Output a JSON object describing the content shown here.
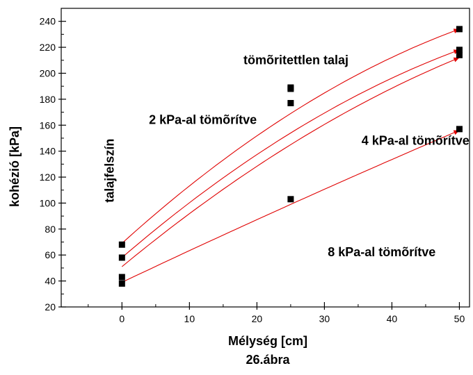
{
  "chart_data": {
    "type": "scatter",
    "title": "",
    "xlabel": "Mélység  [cm]",
    "ylabel": "kohézió [kPa]",
    "caption": "26.ábra",
    "xlim": [
      -9,
      51.5
    ],
    "ylim": [
      20,
      250
    ],
    "xticks": [
      0,
      10,
      20,
      30,
      40,
      50
    ],
    "yticks": [
      20,
      40,
      60,
      80,
      100,
      120,
      140,
      160,
      180,
      200,
      220,
      240
    ],
    "grid": false,
    "point_color": "#000000",
    "curve_color": "#e00000",
    "series": [
      {
        "label": "tömõritettlen talaj",
        "x": [
          0,
          25,
          50
        ],
        "y": [
          68,
          189,
          234
        ],
        "fit_y": [
          69,
          169,
          234
        ]
      },
      {
        "label": "2 kPa-al tömõrítve",
        "x": [
          0,
          25,
          50
        ],
        "y": [
          58,
          188,
          218
        ],
        "fit_y": [
          58,
          154,
          218
        ]
      },
      {
        "label": "4 kPa-al tömõrítve",
        "x": [
          0,
          25,
          50
        ],
        "y": [
          43,
          177,
          214
        ],
        "fit_y": [
          51,
          145,
          212
        ]
      },
      {
        "label": "8 kPa-al tömõrítve",
        "x": [
          0,
          25,
          50
        ],
        "y": [
          38,
          103,
          157
        ],
        "fit_y": [
          39,
          99,
          156
        ]
      }
    ],
    "annotations": [
      {
        "text": "tömõritettlen talaj",
        "x": 18,
        "y": 207
      },
      {
        "text": "2 kPa-al tömõrítve",
        "x": 4,
        "y": 161
      },
      {
        "text": "4 kPa-al tömõrítve",
        "x": 35.5,
        "y": 145
      },
      {
        "text": "8 kPa-al tömõrítve",
        "x": 30.5,
        "y": 59
      },
      {
        "text": "talajfelszín",
        "x": -1.2,
        "y": 125,
        "rotated": true
      }
    ]
  }
}
